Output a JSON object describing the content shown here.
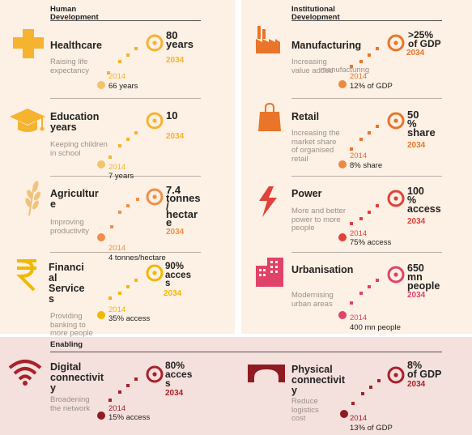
{
  "colors": {
    "human_accent": "#f5b330",
    "human_baseline": "#f3c46a",
    "inst_accent": "#e8752a",
    "inst_baseline": "#ee8a3f",
    "agri_accent": "#ef8f4a",
    "fin_accent": "#f1b800",
    "power_accent": "#e0413a",
    "urban_accent": "#e0426a",
    "enab_accent": "#a8202a",
    "enab_baseline": "#8f1a22",
    "panel_bg": "#fdf0e4",
    "enab_bg": "#f4e0dc"
  },
  "sections": {
    "human": "Human\nDevelopment",
    "institutional": "Institutional\nDevelopment",
    "enabling": "Enabling"
  },
  "items": {
    "healthcare": {
      "icon": "medical-cross-icon",
      "name": "Healthcare",
      "desc": "Raising life\nexpectancy",
      "target": "80\nyears",
      "target_year": "2034",
      "base_year": "2014",
      "base_value": "66 years"
    },
    "education": {
      "icon": "graduation-cap-icon",
      "name": "Education\nyears",
      "desc": "Keeping children\nin school",
      "target": "10",
      "target_year": "2034",
      "base_year": "2014",
      "base_value": "7 years"
    },
    "agriculture": {
      "icon": "wheat-icon",
      "name": "Agricultur\ne",
      "desc": "Improving\nproductivity",
      "target": "7.4\ntonnes\n/\nhectar\ne",
      "target_year": "2034",
      "base_year": "2014",
      "base_value": "4 tonnes/hectare"
    },
    "financial": {
      "icon": "rupee-icon",
      "name": "Financi\nal\nService\ns",
      "desc": "Providing\nbanking to\nmore people",
      "target": "90%\nacces\ns",
      "target_year": "2034",
      "base_year": "2014",
      "base_value": "35% access"
    },
    "manufacturing": {
      "icon": "factory-icon",
      "name": "Manufacturing",
      "desc": "Increasing\nvalue added",
      "desc_overlap": "manufacturing",
      "target": ">25%\nof GDP",
      "target_year": "2034",
      "base_year": "2014",
      "base_value": "12% of GDP"
    },
    "retail": {
      "icon": "shopping-bag-icon",
      "name": "Retail",
      "desc": "Increasing the\nmarket share\nof organised\nretail",
      "target": "50\n%\nshare",
      "target_year": "2034",
      "base_year": "2014",
      "base_value": "8% share"
    },
    "power": {
      "icon": "lightning-icon",
      "name": "Power",
      "desc": "More and better\npower to more\npeople",
      "target": "100\n%\naccess",
      "target_year": "2034",
      "base_year": "2014",
      "base_value": "75% access"
    },
    "urbanisation": {
      "icon": "buildings-icon",
      "name": "Urbanisation",
      "desc": "Modernising\nurban areas",
      "target": "650\nmn\npeople",
      "target_year": "2034",
      "base_year": "2014",
      "base_value": "400 mn people"
    },
    "digital": {
      "icon": "wifi-icon",
      "name": "Digital\nconnectivit\ny",
      "desc": "Broadening\nthe network",
      "target": "80%\nacces\ns",
      "target_year": "2034",
      "base_year": "2014",
      "base_value": "15% access"
    },
    "physical": {
      "icon": "bridge-icon",
      "name": "Physical\nconnectivit\ny",
      "desc": "Reduce\nlogistics\ncost",
      "target": "8%\nof GDP",
      "target_year": "2034",
      "base_year": "2014",
      "base_value": "13% of GDP"
    }
  }
}
